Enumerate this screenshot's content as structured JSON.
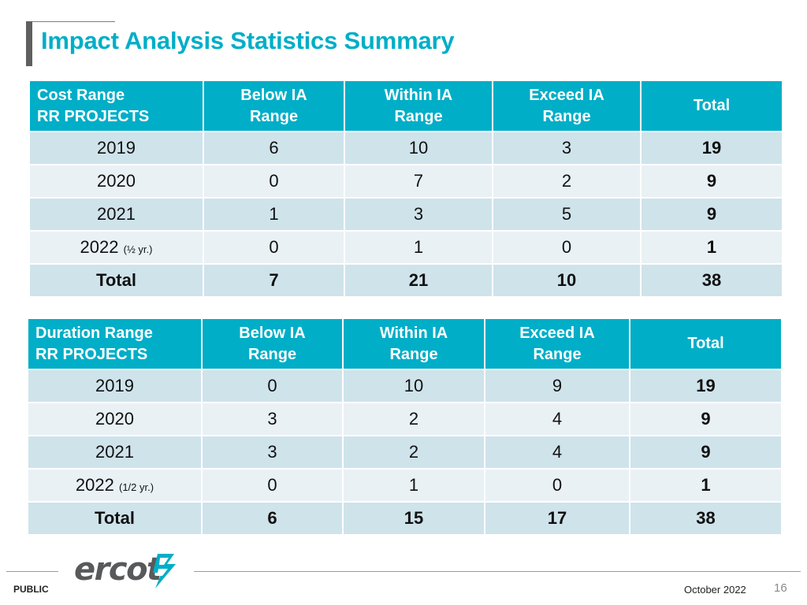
{
  "title": "Impact Analysis Statistics Summary",
  "colors": {
    "accent": "#00aec7",
    "header_bg": "#00aec7",
    "row_dark": "#cfe3eb",
    "row_light": "#e9f1f5",
    "logo_gray": "#58595b",
    "logo_teal": "#00aec7"
  },
  "cost_table": {
    "header": {
      "label_line1": "Cost Range",
      "label_line2": "RR PROJECTS",
      "below_line1": "Below IA",
      "below_line2": "Range",
      "within_line1": "Within IA",
      "within_line2": "Range",
      "exceed_line1": "Exceed IA",
      "exceed_line2": "Range",
      "total": "Total"
    },
    "rows": [
      {
        "year": "2019",
        "note": "",
        "below": "6",
        "within": "10",
        "exceed": "3",
        "total": "19"
      },
      {
        "year": "2020",
        "note": "",
        "below": "0",
        "within": "7",
        "exceed": "2",
        "total": "9"
      },
      {
        "year": "2021",
        "note": "",
        "below": "1",
        "within": "3",
        "exceed": "5",
        "total": "9"
      },
      {
        "year": "2022",
        "note": "(½ yr.)",
        "below": "0",
        "within": "1",
        "exceed": "0",
        "total": "1"
      }
    ],
    "total_row": {
      "label": "Total",
      "below": "7",
      "within": "21",
      "exceed": "10",
      "total": "38"
    }
  },
  "duration_table": {
    "header": {
      "label_line1": "Duration Range",
      "label_line2": "RR PROJECTS",
      "below_line1": "Below IA",
      "below_line2": "Range",
      "within_line1": "Within IA",
      "within_line2": "Range",
      "exceed_line1": "Exceed IA",
      "exceed_line2": "Range",
      "total": "Total"
    },
    "rows": [
      {
        "year": "2019",
        "note": "",
        "below": "0",
        "within": "10",
        "exceed": "9",
        "total": "19"
      },
      {
        "year": "2020",
        "note": "",
        "below": "3",
        "within": "2",
        "exceed": "4",
        "total": "9"
      },
      {
        "year": "2021",
        "note": "",
        "below": "3",
        "within": "2",
        "exceed": "4",
        "total": "9"
      },
      {
        "year": "2022",
        "note": "(1/2 yr.)",
        "below": "0",
        "within": "1",
        "exceed": "0",
        "total": "1"
      }
    ],
    "total_row": {
      "label": "Total",
      "below": "6",
      "within": "15",
      "exceed": "17",
      "total": "38"
    }
  },
  "footer": {
    "logo_text": "ercot",
    "logo_icon": "ercot-lightning-icon",
    "classification": "PUBLIC",
    "date": "October 2022",
    "page_number": "16"
  }
}
